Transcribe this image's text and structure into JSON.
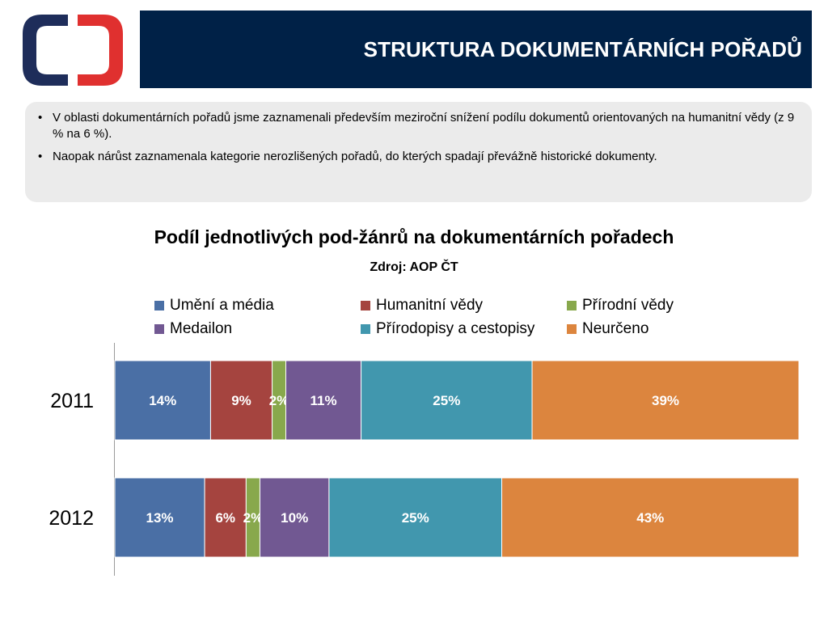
{
  "header": {
    "title": "STRUKTURA DOKUMENTÁRNÍCH POŘADŮ"
  },
  "colors": {
    "header_bg": "#002147",
    "logo_blue": "#1e2d5a",
    "logo_red": "#e0302f"
  },
  "info": {
    "bullets": [
      "V oblasti dokumentárních pořadů jsme zaznamenali především meziroční snížení podílu dokumentů orientovaných na humanitní vědy (z 9 % na 6 %).",
      "Naopak nárůst zaznamenala kategorie nerozlišených pořadů, do kterých spadají převážně historické dokumenty."
    ]
  },
  "chart_data": {
    "type": "bar",
    "orientation": "horizontal",
    "stacked": "percent",
    "title": "Podíl jednotlivých pod-žánrů na dokumentárních pořadech",
    "subtitle": "Zdroj: AOP ČT",
    "categories": [
      "2011",
      "2012"
    ],
    "series": [
      {
        "name": "Umění a média",
        "values": [
          14,
          13
        ],
        "labels": [
          "14%",
          "13%"
        ],
        "color": "#4a6fa5"
      },
      {
        "name": "Humanitní vědy",
        "values": [
          9,
          6
        ],
        "labels": [
          "9%",
          "6%"
        ],
        "color": "#a5443f"
      },
      {
        "name": "Přírodní vědy",
        "values": [
          2,
          2
        ],
        "labels": [
          "2%",
          "2%"
        ],
        "color": "#88a84c"
      },
      {
        "name": "Medailon",
        "values": [
          11,
          10
        ],
        "labels": [
          "11%",
          "10%"
        ],
        "color": "#715892"
      },
      {
        "name": "Přírodopisy a cestopisy",
        "values": [
          25,
          25
        ],
        "labels": [
          "25%",
          "25%"
        ],
        "color": "#4197ae"
      },
      {
        "name": "Neurčeno",
        "values": [
          39,
          43
        ],
        "labels": [
          "39%",
          "43%"
        ],
        "color": "#dc853e"
      }
    ],
    "legend_position": "top",
    "grid": false
  }
}
